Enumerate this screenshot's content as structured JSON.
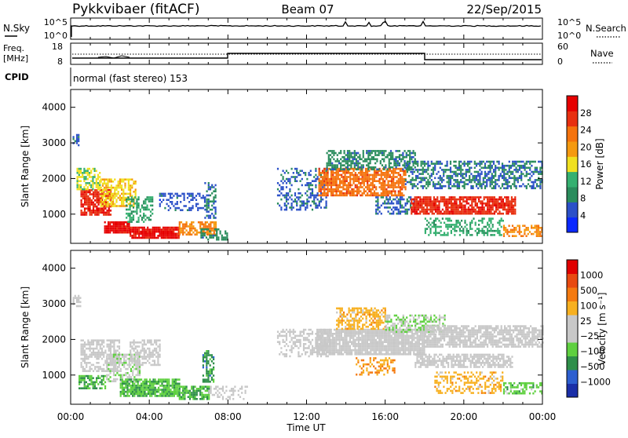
{
  "header": {
    "station": "Pykkvibaer (fitACF)",
    "beam": "Beam 07",
    "date": "22/Sep/2015"
  },
  "noise_panel": {
    "left_label": "N.Sky",
    "left_ticks": [
      "10^5",
      "10^0"
    ],
    "right_label": "N.Search",
    "right_ticks": [
      "10^5",
      "10^0"
    ]
  },
  "freq_panel": {
    "left_label_1": "Freq.",
    "left_label_2": "[MHz]",
    "left_ticks": [
      "18",
      "8"
    ],
    "right_label": "Nave",
    "right_ticks": [
      "60",
      "0"
    ]
  },
  "cpid": {
    "label": "CPID",
    "text": "normal (fast stereo) 153"
  },
  "x_axis": {
    "label": "Time UT",
    "ticks": [
      "00:00",
      "04:00",
      "08:00",
      "12:00",
      "16:00",
      "20:00",
      "00:00"
    ]
  },
  "colors": {
    "power_scale": [
      "#0a28ff",
      "#2b50c8",
      "#2a8c5c",
      "#35b070",
      "#f0e020",
      "#f59a10",
      "#f5730d",
      "#e83010",
      "#e60000"
    ],
    "velocity_scale": [
      "#1a2fa8",
      "#2d5fd0",
      "#2f8f4a",
      "#5fd040",
      "#c8c8c8",
      "#c8c8c8",
      "#f7b020",
      "#f47a10",
      "#e84a10",
      "#e00000"
    ]
  },
  "chart_data": [
    {
      "type": "heatmap",
      "panel": "power",
      "ylabel": "Slant Range [km]",
      "yticks": [
        "4000",
        "3000",
        "2000",
        "1000"
      ],
      "ylim": [
        180,
        4500
      ],
      "xlim": [
        0,
        24
      ],
      "colorbar": {
        "label": "Power [dB]",
        "ticks": [
          "28",
          "24",
          "20",
          "16",
          "12",
          "8",
          "4"
        ],
        "range": [
          0,
          30
        ]
      },
      "regions": [
        {
          "t0": 0.1,
          "t1": 0.4,
          "r0": 2950,
          "r1": 3250,
          "value": 6,
          "density": 0.6
        },
        {
          "t0": 0.5,
          "t1": 2.0,
          "r0": 1000,
          "r1": 1700,
          "value": 26,
          "density": 0.8
        },
        {
          "t0": 0.3,
          "t1": 1.5,
          "r0": 1700,
          "r1": 2300,
          "value": 14,
          "density": 0.6
        },
        {
          "t0": 1.5,
          "t1": 3.3,
          "r0": 1200,
          "r1": 2000,
          "value": 16,
          "density": 0.65
        },
        {
          "t0": 1.7,
          "t1": 3.0,
          "r0": 500,
          "r1": 800,
          "value": 28,
          "density": 0.9
        },
        {
          "t0": 3.0,
          "t1": 5.5,
          "r0": 350,
          "r1": 650,
          "value": 28,
          "density": 0.9
        },
        {
          "t0": 2.8,
          "t1": 4.2,
          "r0": 800,
          "r1": 1500,
          "value": 10,
          "density": 0.5
        },
        {
          "t0": 4.5,
          "t1": 6.8,
          "r0": 1100,
          "r1": 1600,
          "value": 5,
          "density": 0.4
        },
        {
          "t0": 5.5,
          "t1": 7.4,
          "r0": 400,
          "r1": 800,
          "value": 20,
          "density": 0.7
        },
        {
          "t0": 6.6,
          "t1": 8.0,
          "r0": 300,
          "r1": 600,
          "value": 8,
          "density": 0.5
        },
        {
          "t0": 6.8,
          "t1": 7.4,
          "r0": 900,
          "r1": 1900,
          "value": 7,
          "density": 0.45
        },
        {
          "t0": 10.5,
          "t1": 13.0,
          "r0": 1100,
          "r1": 2300,
          "value": 6,
          "density": 0.35
        },
        {
          "t0": 12.6,
          "t1": 17.0,
          "r0": 1500,
          "r1": 2300,
          "value": 22,
          "density": 0.75
        },
        {
          "t0": 13.0,
          "t1": 17.5,
          "r0": 2250,
          "r1": 2800,
          "value": 8,
          "density": 0.55
        },
        {
          "t0": 15.5,
          "t1": 17.5,
          "r0": 1000,
          "r1": 1500,
          "value": 6,
          "density": 0.5
        },
        {
          "t0": 17.3,
          "t1": 22.6,
          "r0": 1000,
          "r1": 1500,
          "value": 26,
          "density": 0.8
        },
        {
          "t0": 17.0,
          "t1": 24.0,
          "r0": 1700,
          "r1": 2500,
          "value": 7,
          "density": 0.55
        },
        {
          "t0": 18.0,
          "t1": 22.0,
          "r0": 400,
          "r1": 900,
          "value": 11,
          "density": 0.45
        },
        {
          "t0": 22.0,
          "t1": 24.0,
          "r0": 400,
          "r1": 700,
          "value": 20,
          "density": 0.5
        }
      ]
    },
    {
      "type": "heatmap",
      "panel": "velocity",
      "ylabel": "Slant Range [km]",
      "yticks": [
        "4000",
        "3000",
        "2000",
        "1000"
      ],
      "ylim": [
        180,
        4500
      ],
      "xlim": [
        0,
        24
      ],
      "colorbar": {
        "label": "Velocity [m s⁻¹]",
        "ticks": [
          "1000",
          "500",
          "100",
          "25",
          "−25",
          "−100",
          "−500",
          "−1000"
        ],
        "range": [
          -1000,
          1000
        ]
      },
      "regions": [
        {
          "t0": 0.1,
          "t1": 0.5,
          "r0": 2950,
          "r1": 3250,
          "value": 0,
          "density": 0.5
        },
        {
          "t0": 0.4,
          "t1": 1.8,
          "r0": 600,
          "r1": 1000,
          "value": -400,
          "density": 0.6
        },
        {
          "t0": 0.5,
          "t1": 2.5,
          "r0": 1100,
          "r1": 2000,
          "value": -30,
          "density": 0.6
        },
        {
          "t0": 1.8,
          "t1": 3.5,
          "r0": 800,
          "r1": 1600,
          "value": -150,
          "density": 0.55
        },
        {
          "t0": 2.5,
          "t1": 5.5,
          "r0": 400,
          "r1": 900,
          "value": -350,
          "density": 0.85
        },
        {
          "t0": 3.0,
          "t1": 4.5,
          "r0": 1300,
          "r1": 2000,
          "value": 0,
          "density": 0.55
        },
        {
          "t0": 5.5,
          "t1": 7.0,
          "r0": 300,
          "r1": 700,
          "value": -400,
          "density": 0.75
        },
        {
          "t0": 6.7,
          "t1": 7.3,
          "r0": 800,
          "r1": 1700,
          "value": -500,
          "density": 0.6
        },
        {
          "t0": 7.0,
          "t1": 9.0,
          "r0": 350,
          "r1": 700,
          "value": 0,
          "density": 0.4
        },
        {
          "t0": 10.5,
          "t1": 13.2,
          "r0": 1500,
          "r1": 2300,
          "value": 0,
          "density": 0.45
        },
        {
          "t0": 12.5,
          "t1": 18.0,
          "r0": 1600,
          "r1": 2300,
          "value": 0,
          "density": 0.9
        },
        {
          "t0": 13.5,
          "t1": 16.0,
          "r0": 2300,
          "r1": 2900,
          "value": 300,
          "density": 0.55
        },
        {
          "t0": 14.5,
          "t1": 16.5,
          "r0": 1000,
          "r1": 1500,
          "value": 400,
          "density": 0.35
        },
        {
          "t0": 16.0,
          "t1": 19.0,
          "r0": 2200,
          "r1": 2700,
          "value": -200,
          "density": 0.5
        },
        {
          "t0": 17.5,
          "t1": 22.5,
          "r0": 1200,
          "r1": 1600,
          "value": 0,
          "density": 0.7
        },
        {
          "t0": 18.0,
          "t1": 24.0,
          "r0": 1800,
          "r1": 2400,
          "value": 0,
          "density": 0.75
        },
        {
          "t0": 18.5,
          "t1": 22.0,
          "r0": 500,
          "r1": 1100,
          "value": 300,
          "density": 0.45
        },
        {
          "t0": 22.0,
          "t1": 24.0,
          "r0": 500,
          "r1": 800,
          "value": -300,
          "density": 0.5
        }
      ]
    }
  ]
}
